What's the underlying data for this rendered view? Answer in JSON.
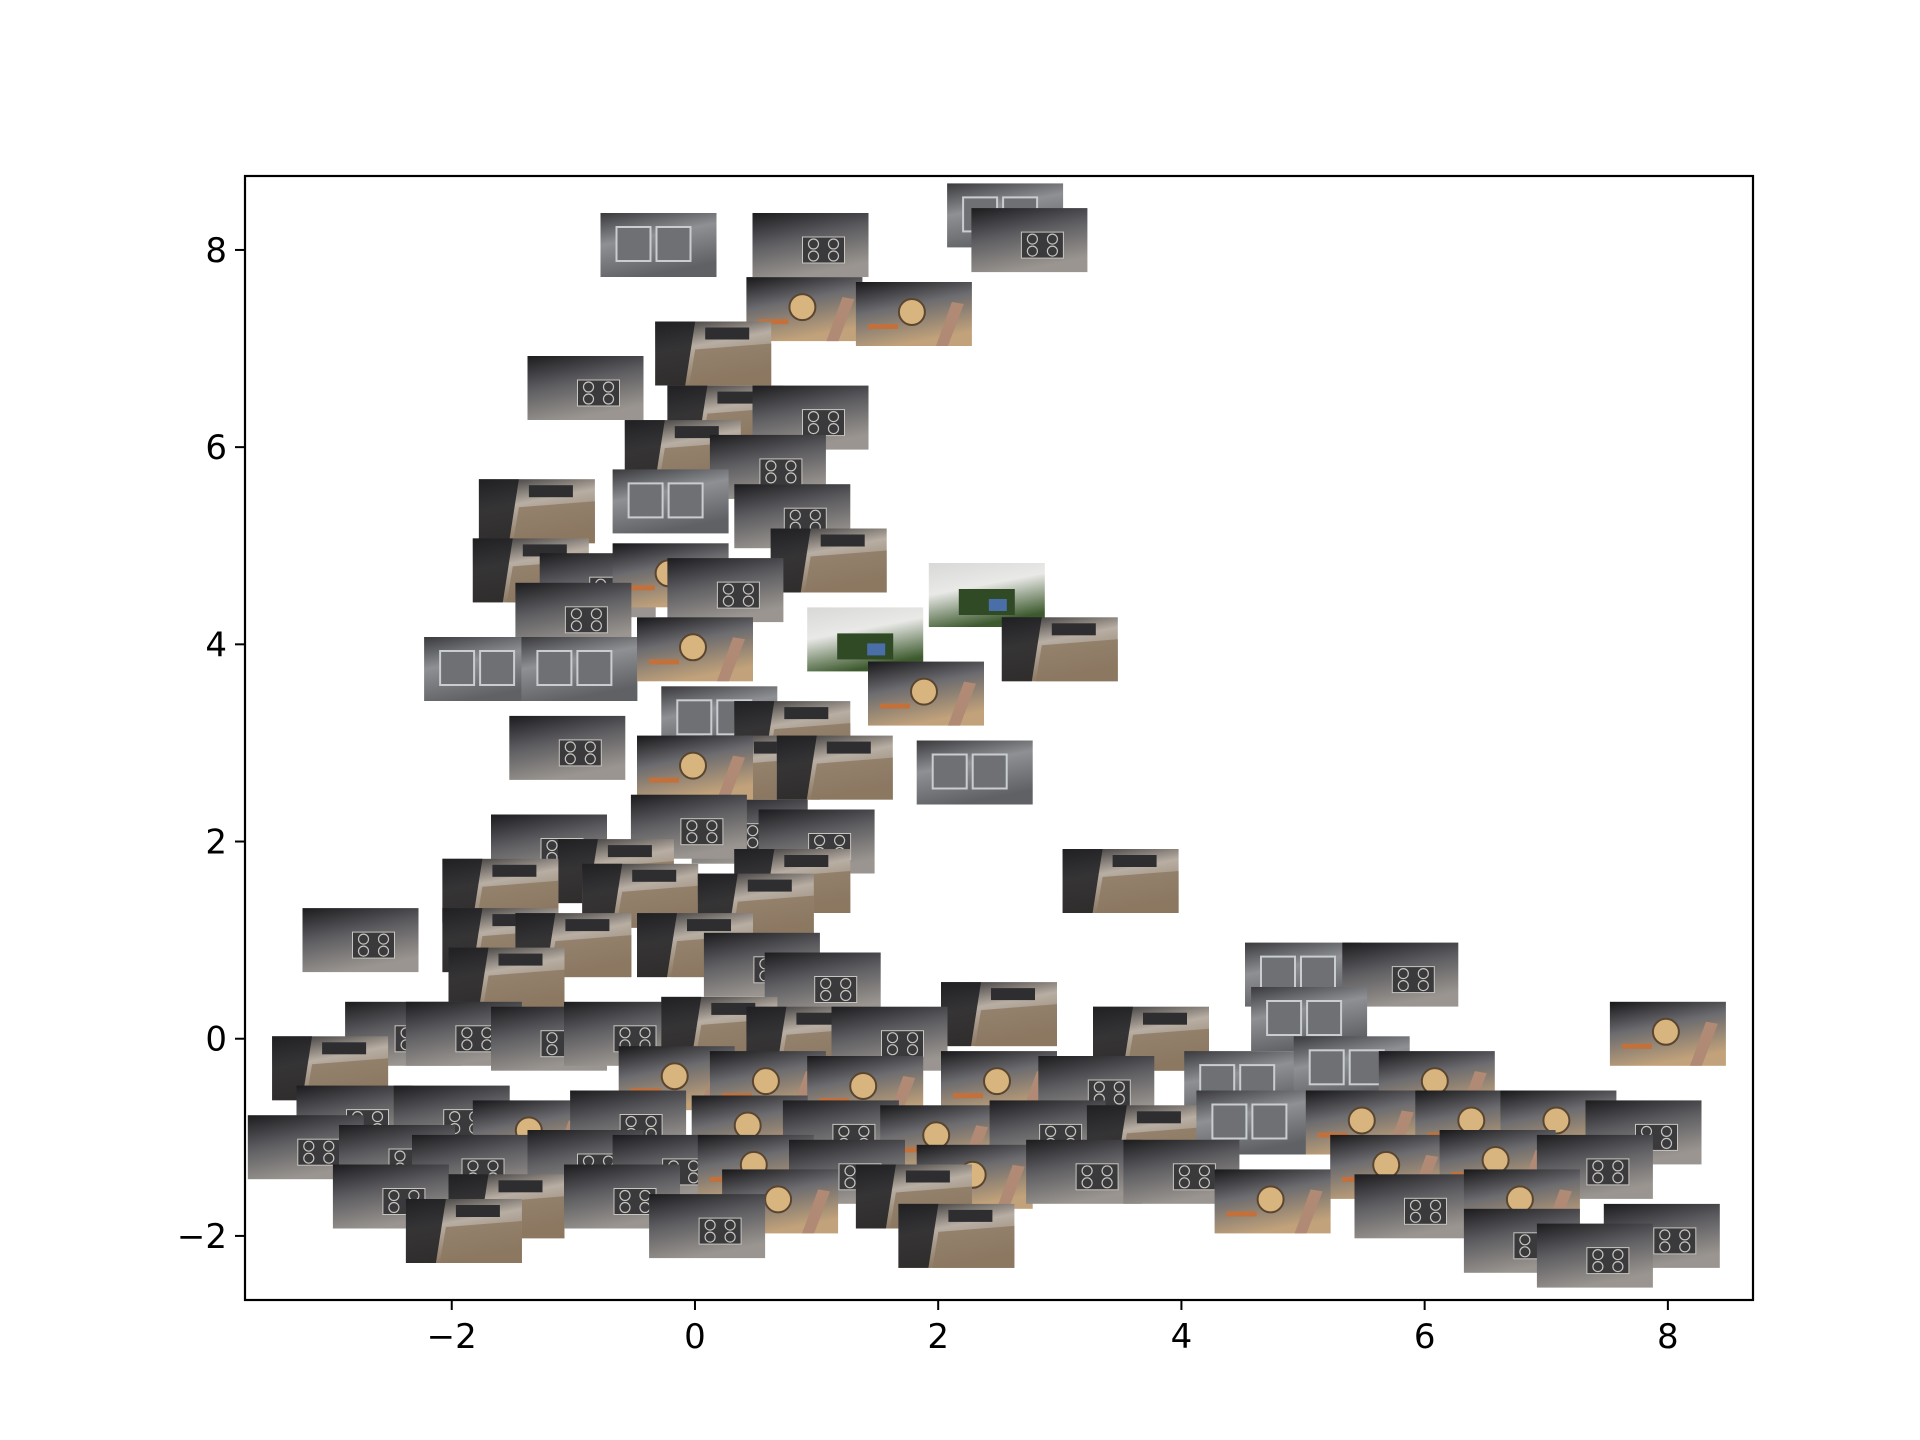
{
  "chart_data": {
    "type": "scatter",
    "marker": "video-frame-thumbnail",
    "title": "",
    "xlabel": "",
    "ylabel": "",
    "xlim": [
      -3.7,
      8.7
    ],
    "ylim": [
      -2.65,
      8.75
    ],
    "xticks": [
      -2,
      0,
      2,
      4,
      6,
      8
    ],
    "yticks": [
      -2,
      0,
      2,
      4,
      6,
      8
    ],
    "xtick_labels": [
      "−2",
      "0",
      "2",
      "4",
      "6",
      "8"
    ],
    "ytick_labels": [
      "−2",
      "0",
      "2",
      "4",
      "6",
      "8"
    ],
    "grid": false,
    "legend": "none",
    "series": [
      {
        "points": [
          {
            "x": -0.3,
            "y": 8.05,
            "scene": "sink"
          },
          {
            "x": 0.95,
            "y": 8.05,
            "scene": "stove"
          },
          {
            "x": 2.55,
            "y": 8.35,
            "scene": "sink"
          },
          {
            "x": 2.75,
            "y": 8.1,
            "scene": "stove"
          },
          {
            "x": 0.9,
            "y": 7.4,
            "scene": "pan"
          },
          {
            "x": 1.8,
            "y": 7.35,
            "scene": "pan"
          },
          {
            "x": 0.15,
            "y": 6.95,
            "scene": "floor"
          },
          {
            "x": -0.9,
            "y": 6.6,
            "scene": "stove"
          },
          {
            "x": 0.25,
            "y": 6.3,
            "scene": "floor"
          },
          {
            "x": 0.95,
            "y": 6.3,
            "scene": "stove"
          },
          {
            "x": -0.1,
            "y": 5.95,
            "scene": "floor"
          },
          {
            "x": 0.6,
            "y": 5.8,
            "scene": "stove"
          },
          {
            "x": -1.3,
            "y": 5.35,
            "scene": "floor"
          },
          {
            "x": -0.2,
            "y": 5.45,
            "scene": "sink"
          },
          {
            "x": 0.8,
            "y": 5.3,
            "scene": "stove"
          },
          {
            "x": 1.1,
            "y": 4.85,
            "scene": "floor"
          },
          {
            "x": -1.35,
            "y": 4.75,
            "scene": "floor"
          },
          {
            "x": -0.8,
            "y": 4.6,
            "scene": "stove"
          },
          {
            "x": -0.2,
            "y": 4.7,
            "scene": "pan"
          },
          {
            "x": 0.25,
            "y": 4.55,
            "scene": "stove"
          },
          {
            "x": -1.0,
            "y": 4.3,
            "scene": "stove"
          },
          {
            "x": 2.4,
            "y": 4.5,
            "scene": "fridge"
          },
          {
            "x": 1.4,
            "y": 4.05,
            "scene": "fridge"
          },
          {
            "x": 3.0,
            "y": 3.95,
            "scene": "floor"
          },
          {
            "x": -1.75,
            "y": 3.75,
            "scene": "sink"
          },
          {
            "x": -0.95,
            "y": 3.75,
            "scene": "sink"
          },
          {
            "x": 0.0,
            "y": 3.95,
            "scene": "pan"
          },
          {
            "x": 1.9,
            "y": 3.5,
            "scene": "pan"
          },
          {
            "x": 0.2,
            "y": 3.25,
            "scene": "sink"
          },
          {
            "x": 0.8,
            "y": 3.1,
            "scene": "floor"
          },
          {
            "x": -1.05,
            "y": 2.95,
            "scene": "stove"
          },
          {
            "x": 0.55,
            "y": 2.75,
            "scene": "floor"
          },
          {
            "x": 0.0,
            "y": 2.75,
            "scene": "pan"
          },
          {
            "x": 1.15,
            "y": 2.75,
            "scene": "floor"
          },
          {
            "x": 2.3,
            "y": 2.7,
            "scene": "sink"
          },
          {
            "x": 0.45,
            "y": 2.1,
            "scene": "stove"
          },
          {
            "x": -0.05,
            "y": 2.15,
            "scene": "stove"
          },
          {
            "x": 1.0,
            "y": 2.0,
            "scene": "stove"
          },
          {
            "x": -1.2,
            "y": 1.95,
            "scene": "stove"
          },
          {
            "x": -0.65,
            "y": 1.7,
            "scene": "floor"
          },
          {
            "x": 3.5,
            "y": 1.6,
            "scene": "floor"
          },
          {
            "x": 0.8,
            "y": 1.6,
            "scene": "floor"
          },
          {
            "x": -1.6,
            "y": 1.5,
            "scene": "floor"
          },
          {
            "x": -0.45,
            "y": 1.45,
            "scene": "floor"
          },
          {
            "x": 0.5,
            "y": 1.35,
            "scene": "floor"
          },
          {
            "x": -2.75,
            "y": 1.0,
            "scene": "stove"
          },
          {
            "x": -1.6,
            "y": 1.0,
            "scene": "floor"
          },
          {
            "x": -1.0,
            "y": 0.95,
            "scene": "floor"
          },
          {
            "x": 0.0,
            "y": 0.95,
            "scene": "floor"
          },
          {
            "x": 0.55,
            "y": 0.75,
            "scene": "stove"
          },
          {
            "x": 1.05,
            "y": 0.55,
            "scene": "stove"
          },
          {
            "x": -1.55,
            "y": 0.6,
            "scene": "floor"
          },
          {
            "x": 5.0,
            "y": 0.65,
            "scene": "sink"
          },
          {
            "x": 5.8,
            "y": 0.65,
            "scene": "stove"
          },
          {
            "x": 2.5,
            "y": 0.25,
            "scene": "floor"
          },
          {
            "x": 3.75,
            "y": 0.0,
            "scene": "floor"
          },
          {
            "x": 5.05,
            "y": 0.2,
            "scene": "sink"
          },
          {
            "x": 8.0,
            "y": 0.05,
            "scene": "pan"
          },
          {
            "x": -2.4,
            "y": 0.05,
            "scene": "stove"
          },
          {
            "x": -1.9,
            "y": 0.05,
            "scene": "stove"
          },
          {
            "x": -1.2,
            "y": 0.0,
            "scene": "stove"
          },
          {
            "x": -0.6,
            "y": 0.05,
            "scene": "stove"
          },
          {
            "x": 0.2,
            "y": 0.1,
            "scene": "floor"
          },
          {
            "x": 0.9,
            "y": 0.0,
            "scene": "floor"
          },
          {
            "x": 1.6,
            "y": 0.0,
            "scene": "stove"
          },
          {
            "x": -3.0,
            "y": -0.3,
            "scene": "floor"
          },
          {
            "x": -0.15,
            "y": -0.4,
            "scene": "pan"
          },
          {
            "x": 0.6,
            "y": -0.45,
            "scene": "pan"
          },
          {
            "x": 1.4,
            "y": -0.5,
            "scene": "pan"
          },
          {
            "x": 2.5,
            "y": -0.45,
            "scene": "pan"
          },
          {
            "x": 3.3,
            "y": -0.5,
            "scene": "stove"
          },
          {
            "x": 4.5,
            "y": -0.45,
            "scene": "sink"
          },
          {
            "x": 5.4,
            "y": -0.3,
            "scene": "sink"
          },
          {
            "x": 6.1,
            "y": -0.45,
            "scene": "pan"
          },
          {
            "x": -2.8,
            "y": -0.8,
            "scene": "stove"
          },
          {
            "x": -2.0,
            "y": -0.8,
            "scene": "stove"
          },
          {
            "x": -1.35,
            "y": -0.95,
            "scene": "pan"
          },
          {
            "x": -0.55,
            "y": -0.85,
            "scene": "stove"
          },
          {
            "x": 0.45,
            "y": -0.9,
            "scene": "pan"
          },
          {
            "x": 1.2,
            "y": -0.95,
            "scene": "stove"
          },
          {
            "x": 2.0,
            "y": -1.0,
            "scene": "pan"
          },
          {
            "x": 2.9,
            "y": -0.95,
            "scene": "stove"
          },
          {
            "x": 3.7,
            "y": -1.0,
            "scene": "floor"
          },
          {
            "x": 4.6,
            "y": -0.85,
            "scene": "sink"
          },
          {
            "x": 5.5,
            "y": -0.85,
            "scene": "pan"
          },
          {
            "x": 6.4,
            "y": -0.85,
            "scene": "pan"
          },
          {
            "x": 7.1,
            "y": -0.85,
            "scene": "pan"
          },
          {
            "x": 7.8,
            "y": -0.95,
            "scene": "stove"
          },
          {
            "x": -3.2,
            "y": -1.1,
            "scene": "stove"
          },
          {
            "x": -2.45,
            "y": -1.2,
            "scene": "stove"
          },
          {
            "x": -1.85,
            "y": -1.3,
            "scene": "stove"
          },
          {
            "x": -0.9,
            "y": -1.25,
            "scene": "stove"
          },
          {
            "x": -0.2,
            "y": -1.3,
            "scene": "stove"
          },
          {
            "x": 0.5,
            "y": -1.3,
            "scene": "pan"
          },
          {
            "x": 1.25,
            "y": -1.35,
            "scene": "stove"
          },
          {
            "x": 2.3,
            "y": -1.4,
            "scene": "pan"
          },
          {
            "x": 3.2,
            "y": -1.35,
            "scene": "stove"
          },
          {
            "x": 4.0,
            "y": -1.35,
            "scene": "stove"
          },
          {
            "x": 5.7,
            "y": -1.3,
            "scene": "pan"
          },
          {
            "x": 6.6,
            "y": -1.25,
            "scene": "pan"
          },
          {
            "x": 7.4,
            "y": -1.3,
            "scene": "stove"
          },
          {
            "x": -2.5,
            "y": -1.6,
            "scene": "stove"
          },
          {
            "x": -1.55,
            "y": -1.7,
            "scene": "floor"
          },
          {
            "x": -0.6,
            "y": -1.6,
            "scene": "stove"
          },
          {
            "x": 0.7,
            "y": -1.65,
            "scene": "pan"
          },
          {
            "x": 1.8,
            "y": -1.6,
            "scene": "floor"
          },
          {
            "x": 4.75,
            "y": -1.65,
            "scene": "pan"
          },
          {
            "x": 5.9,
            "y": -1.7,
            "scene": "stove"
          },
          {
            "x": 6.8,
            "y": -1.65,
            "scene": "pan"
          },
          {
            "x": -1.9,
            "y": -1.95,
            "scene": "floor"
          },
          {
            "x": 0.1,
            "y": -1.9,
            "scene": "stove"
          },
          {
            "x": 2.15,
            "y": -2.0,
            "scene": "floor"
          },
          {
            "x": 6.8,
            "y": -2.05,
            "scene": "stove"
          },
          {
            "x": 7.95,
            "y": -2.0,
            "scene": "stove"
          },
          {
            "x": 7.4,
            "y": -2.2,
            "scene": "stove"
          }
        ]
      }
    ]
  },
  "scene_palettes": {
    "floor": {
      "top": "#2b2b2e",
      "mid": "#b8aea3",
      "bottom": "#8c7862",
      "accent": "#d9cfc2"
    },
    "stove": {
      "top": "#1c1c1f",
      "mid": "#5a5a5e",
      "bottom": "#9a9590",
      "accent": "#c8c4bf"
    },
    "sink": {
      "top": "#3a3a3d",
      "mid": "#8e9094",
      "bottom": "#5f6165",
      "accent": "#c9ccd0"
    },
    "pan": {
      "top": "#18181b",
      "mid": "#6b6b6f",
      "bottom": "#c2a27a",
      "accent": "#d8b47e"
    },
    "fridge": {
      "top": "#d8d8d6",
      "mid": "#e9e9e7",
      "bottom": "#3d5a2e",
      "accent": "#4a6fa8"
    }
  }
}
